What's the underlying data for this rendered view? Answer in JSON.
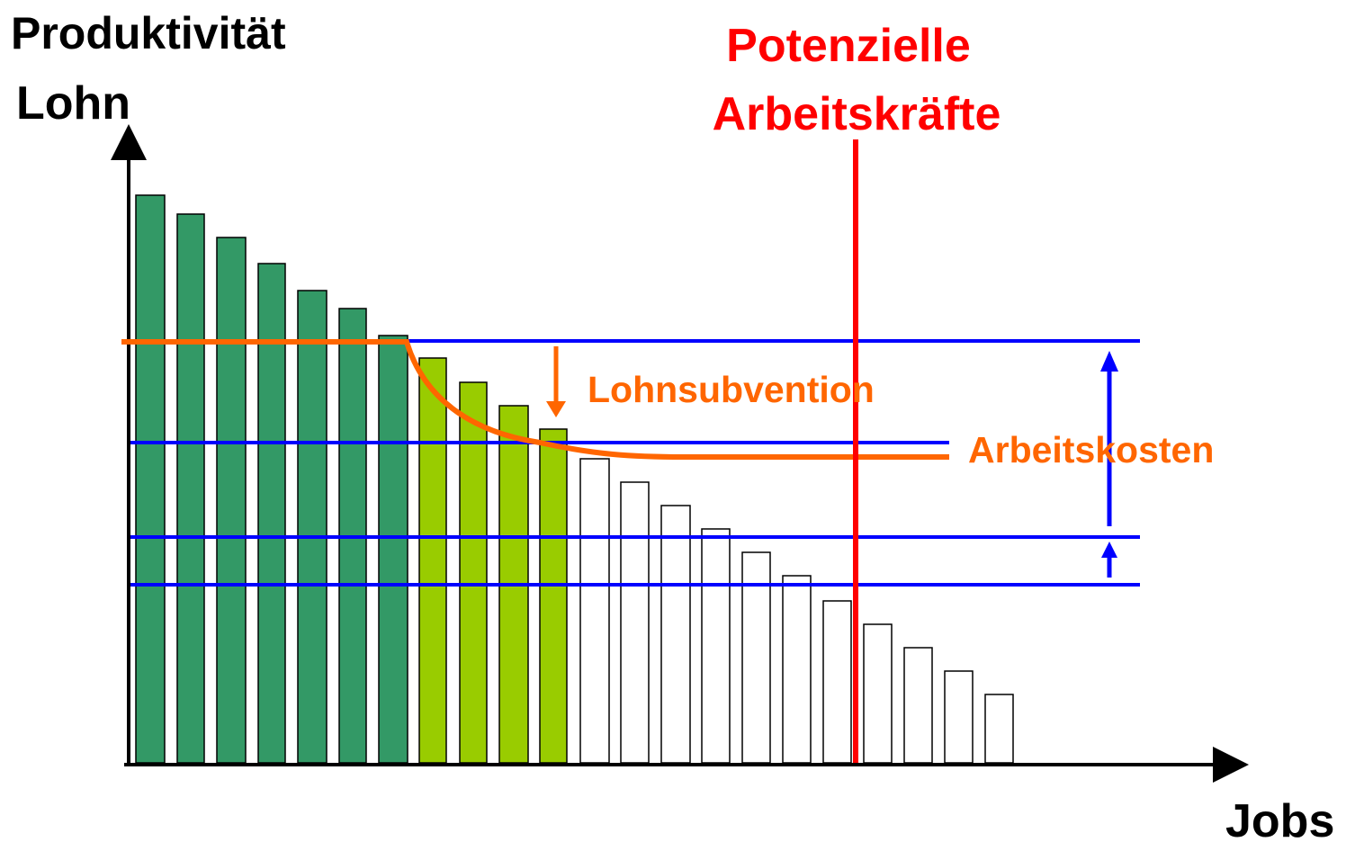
{
  "axes": {
    "y_label_1": "Produktivität",
    "y_label_2": "Lohn",
    "x_label": "Jobs"
  },
  "labels": {
    "workforce_1": "Potenzielle",
    "workforce_2": "Arbeitskräfte",
    "subsidy": "Lohnsubvention",
    "labor_cost": "Arbeitskosten"
  }
}
